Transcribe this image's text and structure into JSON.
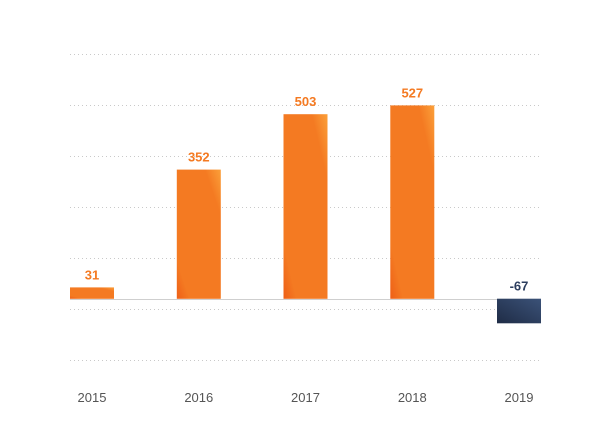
{
  "chart_data": {
    "type": "bar",
    "categories": [
      "2015",
      "2016",
      "2017",
      "2018",
      "2019"
    ],
    "values": [
      31,
      352,
      503,
      527,
      -67
    ],
    "title": "",
    "xlabel": "",
    "ylabel": "",
    "ylim": [
      -167,
      667
    ],
    "grid": true,
    "legend": "none",
    "colors": {
      "positive": "#f47a22",
      "positive_highlight": "#fba03a",
      "positive_shadow": "#ee5f17",
      "negative": "#2c3d5e",
      "negative_highlight": "#3b5278",
      "negative_shadow": "#1f2c46",
      "positive_label": "#f47a22",
      "negative_label": "#2c3d5e"
    }
  }
}
